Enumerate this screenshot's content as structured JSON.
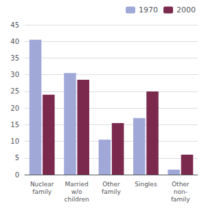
{
  "chart_data": {
    "type": "bar",
    "categories": [
      "Nuclear\nfamily",
      "Married\nw/o\nchildren",
      "Other\nfamily",
      "Singles",
      "Other\nnon-\nfamily"
    ],
    "series": [
      {
        "name": "1970",
        "color": "#a0a8d8",
        "values": [
          40.5,
          30.5,
          10.5,
          17,
          1.5
        ]
      },
      {
        "name": "2000",
        "color": "#7b2a4e",
        "values": [
          24,
          28.5,
          15.5,
          25,
          6
        ]
      }
    ],
    "ylim": [
      0,
      45
    ],
    "yticks": [
      0,
      5,
      10,
      15,
      20,
      25,
      30,
      35,
      40,
      45
    ],
    "grid": true,
    "legend": "upper right"
  }
}
